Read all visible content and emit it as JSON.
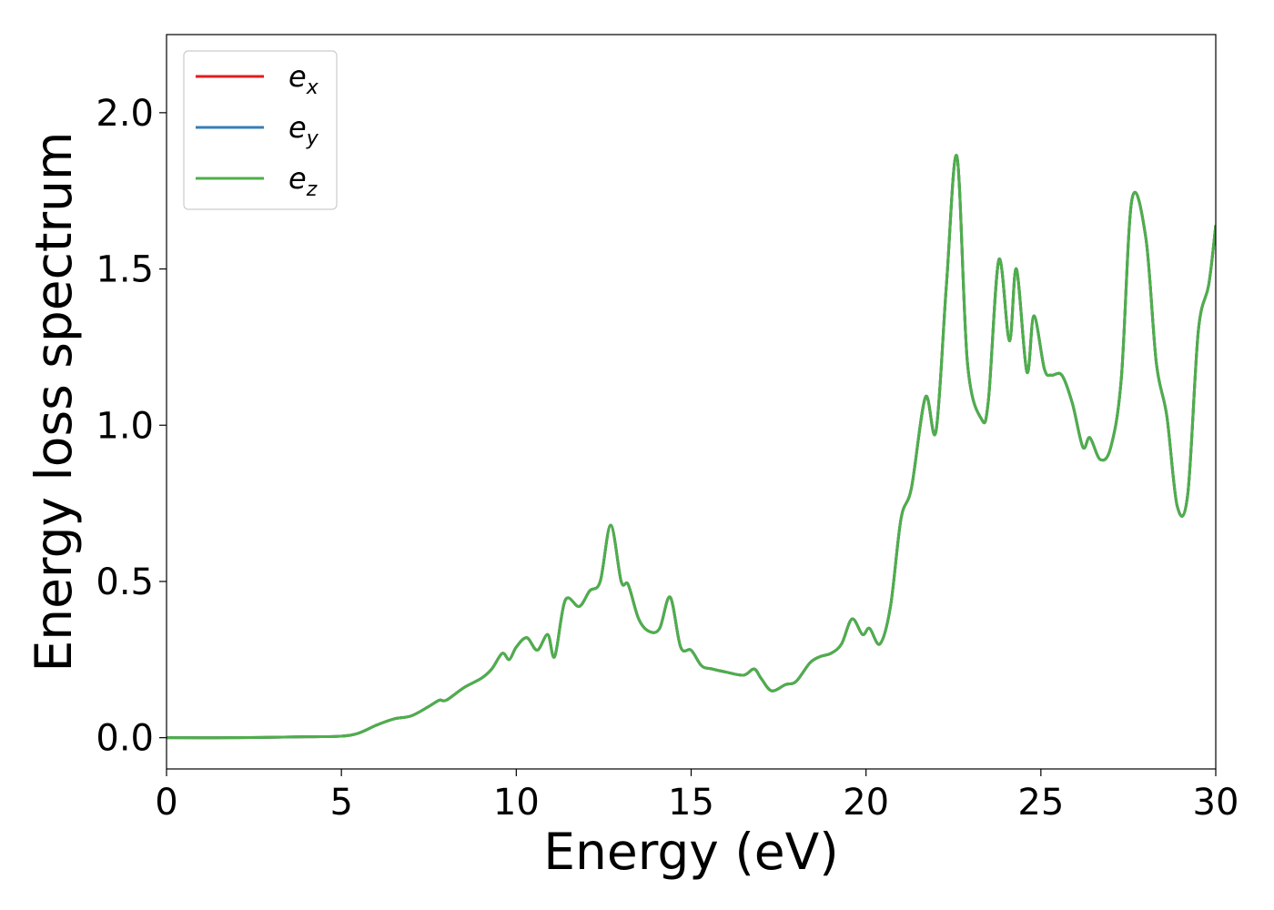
{
  "chart_data": {
    "type": "line",
    "title": "",
    "xlabel": "Energy (eV)",
    "ylabel": "Energy loss spectrum",
    "xlim": [
      0,
      30
    ],
    "ylim": [
      -0.1,
      2.25
    ],
    "xticks": [
      0,
      5,
      10,
      15,
      20,
      25,
      30
    ],
    "xtick_labels": [
      "0",
      "5",
      "10",
      "15",
      "20",
      "25",
      "30"
    ],
    "yticks": [
      0.0,
      0.5,
      1.0,
      1.5,
      2.0
    ],
    "ytick_labels": [
      "0.0",
      "0.5",
      "1.0",
      "1.5",
      "2.0"
    ],
    "grid": false,
    "legend_position": "top-left",
    "series": [
      {
        "name": "e_x",
        "legend_base": "e",
        "legend_sub": "x",
        "color": "#e41a1c",
        "x": [
          0,
          2,
          4,
          5,
          5.5,
          6.0,
          6.5,
          7.0,
          7.5,
          7.8,
          8.0,
          8.5,
          9.0,
          9.3,
          9.6,
          9.8,
          10.0,
          10.3,
          10.6,
          10.9,
          11.1,
          11.4,
          11.8,
          12.1,
          12.4,
          12.7,
          13.0,
          13.2,
          13.5,
          13.8,
          14.1,
          14.4,
          14.7,
          15.0,
          15.3,
          15.6,
          16.0,
          16.5,
          16.8,
          17.0,
          17.3,
          17.7,
          18.0,
          18.4,
          18.7,
          19.0,
          19.3,
          19.6,
          19.9,
          20.1,
          20.4,
          20.7,
          21.0,
          21.3,
          21.7,
          22.0,
          22.3,
          22.6,
          22.9,
          23.3,
          23.5,
          23.8,
          24.1,
          24.3,
          24.6,
          24.8,
          25.1,
          25.3,
          25.6,
          25.9,
          26.2,
          26.4,
          26.7,
          27.0,
          27.3,
          27.6,
          28.0,
          28.3,
          28.6,
          28.9,
          29.2,
          29.5,
          29.8,
          30.0
        ],
        "y": [
          0.0,
          0.0,
          0.003,
          0.005,
          0.015,
          0.04,
          0.06,
          0.07,
          0.1,
          0.12,
          0.12,
          0.16,
          0.19,
          0.22,
          0.27,
          0.25,
          0.29,
          0.32,
          0.28,
          0.33,
          0.26,
          0.44,
          0.42,
          0.47,
          0.5,
          0.68,
          0.5,
          0.49,
          0.38,
          0.34,
          0.35,
          0.45,
          0.29,
          0.28,
          0.23,
          0.22,
          0.21,
          0.2,
          0.22,
          0.19,
          0.15,
          0.17,
          0.18,
          0.24,
          0.26,
          0.27,
          0.3,
          0.38,
          0.33,
          0.35,
          0.3,
          0.42,
          0.7,
          0.8,
          1.09,
          0.98,
          1.45,
          1.86,
          1.2,
          1.02,
          1.08,
          1.53,
          1.27,
          1.5,
          1.17,
          1.35,
          1.18,
          1.16,
          1.16,
          1.07,
          0.93,
          0.96,
          0.89,
          0.93,
          1.15,
          1.72,
          1.6,
          1.2,
          1.03,
          0.74,
          0.78,
          1.3,
          1.45,
          1.64
        ]
      },
      {
        "name": "e_y",
        "legend_base": "e",
        "legend_sub": "y",
        "color": "#377eb8",
        "x": [
          0,
          2,
          4,
          5,
          5.5,
          6.0,
          6.5,
          7.0,
          7.5,
          7.8,
          8.0,
          8.5,
          9.0,
          9.3,
          9.6,
          9.8,
          10.0,
          10.3,
          10.6,
          10.9,
          11.1,
          11.4,
          11.8,
          12.1,
          12.4,
          12.7,
          13.0,
          13.2,
          13.5,
          13.8,
          14.1,
          14.4,
          14.7,
          15.0,
          15.3,
          15.6,
          16.0,
          16.5,
          16.8,
          17.0,
          17.3,
          17.7,
          18.0,
          18.4,
          18.7,
          19.0,
          19.3,
          19.6,
          19.9,
          20.1,
          20.4,
          20.7,
          21.0,
          21.3,
          21.7,
          22.0,
          22.3,
          22.6,
          22.9,
          23.3,
          23.5,
          23.8,
          24.1,
          24.3,
          24.6,
          24.8,
          25.1,
          25.3,
          25.6,
          25.9,
          26.2,
          26.4,
          26.7,
          27.0,
          27.3,
          27.6,
          28.0,
          28.3,
          28.6,
          28.9,
          29.2,
          29.5,
          29.8,
          30.0
        ],
        "y": [
          0.0,
          0.0,
          0.003,
          0.005,
          0.015,
          0.04,
          0.06,
          0.07,
          0.1,
          0.12,
          0.12,
          0.16,
          0.19,
          0.22,
          0.27,
          0.25,
          0.29,
          0.32,
          0.28,
          0.33,
          0.26,
          0.44,
          0.42,
          0.47,
          0.5,
          0.68,
          0.5,
          0.49,
          0.38,
          0.34,
          0.35,
          0.45,
          0.29,
          0.28,
          0.23,
          0.22,
          0.21,
          0.2,
          0.22,
          0.19,
          0.15,
          0.17,
          0.18,
          0.24,
          0.26,
          0.27,
          0.3,
          0.38,
          0.33,
          0.35,
          0.3,
          0.42,
          0.7,
          0.8,
          1.09,
          0.98,
          1.45,
          1.86,
          1.2,
          1.02,
          1.08,
          1.53,
          1.27,
          1.5,
          1.17,
          1.35,
          1.18,
          1.16,
          1.16,
          1.07,
          0.93,
          0.96,
          0.89,
          0.93,
          1.15,
          1.72,
          1.6,
          1.2,
          1.03,
          0.74,
          0.78,
          1.3,
          1.45,
          1.64
        ]
      },
      {
        "name": "e_z",
        "legend_base": "e",
        "legend_sub": "z",
        "color": "#4daf4a",
        "x": [
          0,
          2,
          4,
          5,
          5.5,
          6.0,
          6.5,
          7.0,
          7.5,
          7.8,
          8.0,
          8.5,
          9.0,
          9.3,
          9.6,
          9.8,
          10.0,
          10.3,
          10.6,
          10.9,
          11.1,
          11.4,
          11.8,
          12.1,
          12.4,
          12.7,
          13.0,
          13.2,
          13.5,
          13.8,
          14.1,
          14.4,
          14.7,
          15.0,
          15.3,
          15.6,
          16.0,
          16.5,
          16.8,
          17.0,
          17.3,
          17.7,
          18.0,
          18.4,
          18.7,
          19.0,
          19.3,
          19.6,
          19.9,
          20.1,
          20.4,
          20.7,
          21.0,
          21.3,
          21.7,
          22.0,
          22.3,
          22.6,
          22.9,
          23.3,
          23.5,
          23.8,
          24.1,
          24.3,
          24.6,
          24.8,
          25.1,
          25.3,
          25.6,
          25.9,
          26.2,
          26.4,
          26.7,
          27.0,
          27.3,
          27.6,
          28.0,
          28.3,
          28.6,
          28.9,
          29.2,
          29.5,
          29.8,
          30.0
        ],
        "y": [
          0.0,
          0.0,
          0.003,
          0.005,
          0.015,
          0.04,
          0.06,
          0.07,
          0.1,
          0.12,
          0.12,
          0.16,
          0.19,
          0.22,
          0.27,
          0.25,
          0.29,
          0.32,
          0.28,
          0.33,
          0.26,
          0.44,
          0.42,
          0.47,
          0.5,
          0.68,
          0.5,
          0.49,
          0.38,
          0.34,
          0.35,
          0.45,
          0.29,
          0.28,
          0.23,
          0.22,
          0.21,
          0.2,
          0.22,
          0.19,
          0.15,
          0.17,
          0.18,
          0.24,
          0.26,
          0.27,
          0.3,
          0.38,
          0.33,
          0.35,
          0.3,
          0.42,
          0.7,
          0.8,
          1.09,
          0.98,
          1.45,
          1.86,
          1.2,
          1.02,
          1.08,
          1.53,
          1.27,
          1.5,
          1.17,
          1.35,
          1.18,
          1.16,
          1.16,
          1.07,
          0.93,
          0.96,
          0.89,
          0.93,
          1.15,
          1.72,
          1.6,
          1.2,
          1.03,
          0.74,
          0.78,
          1.3,
          1.45,
          1.64
        ]
      }
    ]
  }
}
